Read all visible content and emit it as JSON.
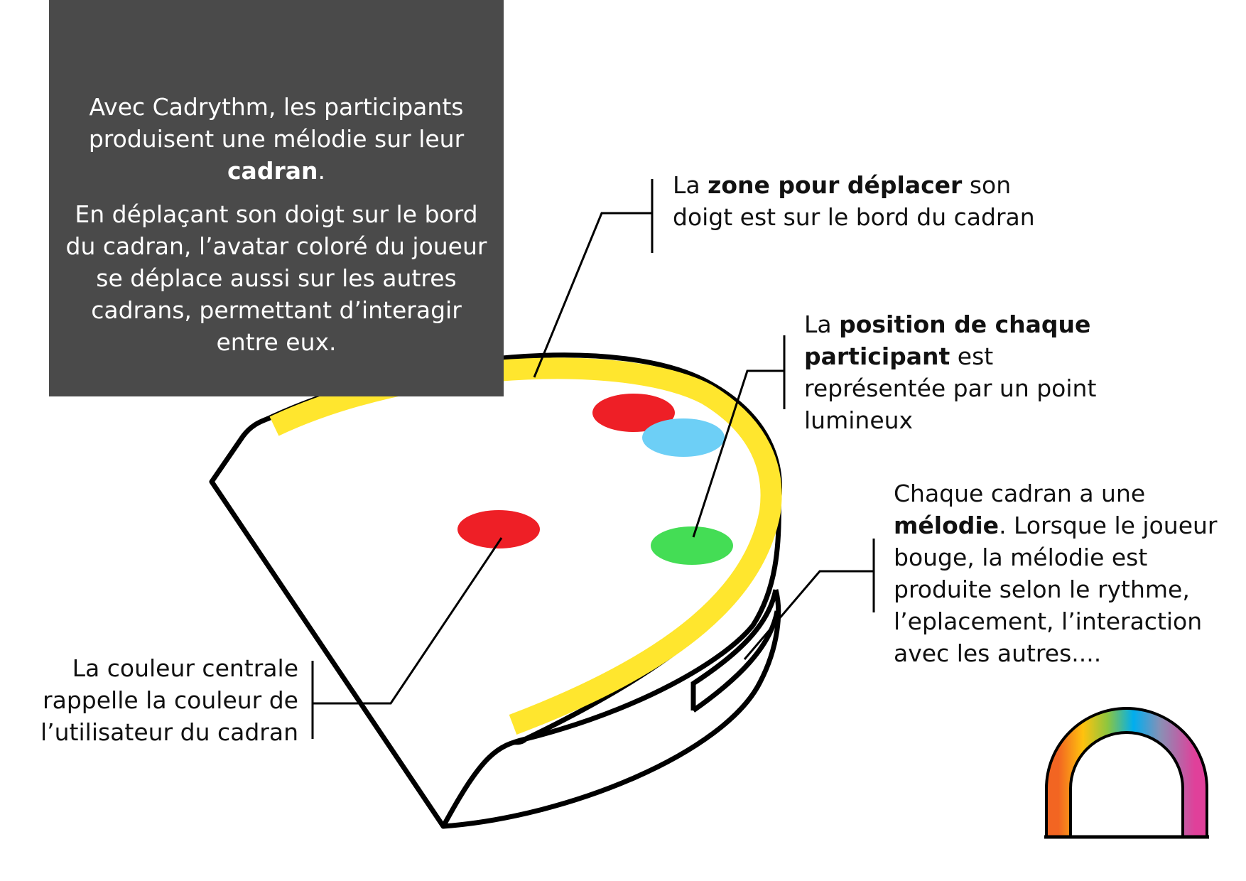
{
  "intro": {
    "p1_before": "Avec Cadrythm, les participants produisent une mélodie sur leur ",
    "p1_bold": "cadran",
    "p1_after": ".",
    "p2": "En déplaçant son doigt sur le bord du cadran, l’avatar coloré du joueur se déplace aussi sur les autres cadrans, permettant d’interagir entre eux."
  },
  "annotations": {
    "zone": {
      "before": "La ",
      "bold": "zone pour déplacer",
      "after": " son doigt est sur le bord du cadran"
    },
    "position": {
      "before": "La ",
      "bold": "position de chaque participant",
      "after": " est représentée par un point lumineux"
    },
    "melodie": {
      "before": "Chaque cadran a une ",
      "bold": "mélodie",
      "after": ". Lorsque le joueur bouge, la mélodie est produite selon le rythme, l’eplacement, l’interaction avec les autres...."
    },
    "couleur": {
      "text": "La couleur centrale rappelle la couleur de l’utilisateur du cadran"
    }
  },
  "colors": {
    "box_bg": "#4a4a4a",
    "track": "#ffe62e",
    "dot_red": "#ee1f26",
    "dot_blue": "#6dcff6",
    "dot_green": "#44dd55",
    "outline": "#000000"
  },
  "icons": {
    "logo": "rainbow-arch-logo"
  }
}
